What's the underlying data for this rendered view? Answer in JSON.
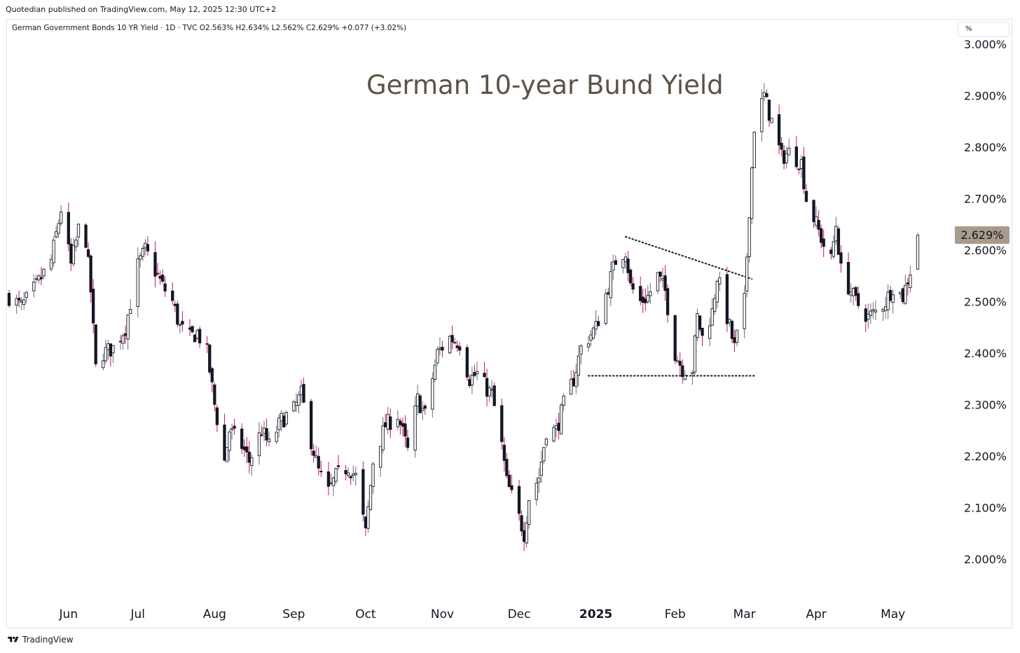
{
  "header": {
    "published_text": "Quotedian published on TradingView.com, May 12, 2025 12:30 UTC+2",
    "symbol_line": "German Government Bonds 10 YR Yield · 1D · TVC  O2.563%  H2.634%  L2.562%  C2.629%  +0.077 (+3.02%)",
    "unit_label": "%"
  },
  "footer": {
    "brand": "TradingView"
  },
  "colors": {
    "up": "#131722",
    "down": "#c2185b",
    "wick": "#6a6d78",
    "label_bg": "#a89b8c",
    "title": "#5d5247"
  },
  "chart_data": {
    "type": "candlestick",
    "title": "German 10-year Bund Yield",
    "xlabel": "",
    "ylabel": "",
    "ylim": [
      1.9,
      3.03
    ],
    "y_ticks": [
      "3.000%",
      "2.900%",
      "2.800%",
      "2.700%",
      "2.600%",
      "2.500%",
      "2.400%",
      "2.300%",
      "2.200%",
      "2.100%",
      "2.000%"
    ],
    "x_ticks": [
      {
        "label": "Jun",
        "date": "2024-06-03"
      },
      {
        "label": "Jul",
        "date": "2024-07-01"
      },
      {
        "label": "Aug",
        "date": "2024-08-01"
      },
      {
        "label": "Sep",
        "date": "2024-09-02"
      },
      {
        "label": "Oct",
        "date": "2024-10-01"
      },
      {
        "label": "Nov",
        "date": "2024-11-01"
      },
      {
        "label": "Dec",
        "date": "2024-12-02"
      },
      {
        "label": "2025",
        "date": "2025-01-02",
        "bold": true
      },
      {
        "label": "Feb",
        "date": "2025-02-03"
      },
      {
        "label": "Mar",
        "date": "2025-03-03"
      },
      {
        "label": "Apr",
        "date": "2025-04-01"
      },
      {
        "label": "May",
        "date": "2025-05-02"
      }
    ],
    "last_price_label": "2.629%",
    "last_price": 2.629,
    "ohlc_latest": {
      "open": 2.563,
      "high": 2.634,
      "low": 2.562,
      "close": 2.629,
      "change": 0.077,
      "change_pct": 3.02
    },
    "trendlines": [
      {
        "style": "dotted",
        "from": {
          "date": "2025-01-14",
          "value": 2.626
        },
        "to": {
          "date": "2025-03-06",
          "value": 2.544
        }
      },
      {
        "style": "dotted",
        "from": {
          "date": "2024-12-30",
          "value": 2.356
        },
        "to": {
          "date": "2025-03-07",
          "value": 2.356
        }
      }
    ],
    "series_path": [
      [
        "2024-05-10",
        2.51
      ],
      [
        "2024-05-15",
        2.49
      ],
      [
        "2024-05-21",
        2.53
      ],
      [
        "2024-05-27",
        2.58
      ],
      [
        "2024-05-31",
        2.68
      ],
      [
        "2024-06-04",
        2.57
      ],
      [
        "2024-06-07",
        2.64
      ],
      [
        "2024-06-10",
        2.62
      ],
      [
        "2024-06-12",
        2.52
      ],
      [
        "2024-06-14",
        2.37
      ],
      [
        "2024-06-17",
        2.4
      ],
      [
        "2024-06-21",
        2.41
      ],
      [
        "2024-06-26",
        2.45
      ],
      [
        "2024-07-01",
        2.57
      ],
      [
        "2024-07-04",
        2.6
      ],
      [
        "2024-07-08",
        2.56
      ],
      [
        "2024-07-11",
        2.53
      ],
      [
        "2024-07-15",
        2.5
      ],
      [
        "2024-07-18",
        2.45
      ],
      [
        "2024-07-22",
        2.43
      ],
      [
        "2024-07-25",
        2.44
      ],
      [
        "2024-07-29",
        2.4
      ],
      [
        "2024-08-01",
        2.3
      ],
      [
        "2024-08-05",
        2.19
      ],
      [
        "2024-08-07",
        2.25
      ],
      [
        "2024-08-12",
        2.22
      ],
      [
        "2024-08-15",
        2.19
      ],
      [
        "2024-08-20",
        2.25
      ],
      [
        "2024-08-23",
        2.22
      ],
      [
        "2024-08-28",
        2.27
      ],
      [
        "2024-09-02",
        2.29
      ],
      [
        "2024-09-05",
        2.32
      ],
      [
        "2024-09-09",
        2.23
      ],
      [
        "2024-09-12",
        2.17
      ],
      [
        "2024-09-16",
        2.13
      ],
      [
        "2024-09-19",
        2.16
      ],
      [
        "2024-09-24",
        2.18
      ],
      [
        "2024-09-27",
        2.16
      ],
      [
        "2024-10-01",
        2.05
      ],
      [
        "2024-10-04",
        2.19
      ],
      [
        "2024-10-09",
        2.26
      ],
      [
        "2024-10-14",
        2.28
      ],
      [
        "2024-10-18",
        2.21
      ],
      [
        "2024-10-22",
        2.31
      ],
      [
        "2024-10-25",
        2.28
      ],
      [
        "2024-10-30",
        2.4
      ],
      [
        "2024-11-04",
        2.43
      ],
      [
        "2024-11-08",
        2.42
      ],
      [
        "2024-11-12",
        2.35
      ],
      [
        "2024-11-15",
        2.36
      ],
      [
        "2024-11-19",
        2.33
      ],
      [
        "2024-11-21",
        2.32
      ],
      [
        "2024-11-25",
        2.22
      ],
      [
        "2024-11-27",
        2.15
      ],
      [
        "2024-12-02",
        2.08
      ],
      [
        "2024-12-04",
        2.05
      ],
      [
        "2024-12-06",
        2.12
      ],
      [
        "2024-12-10",
        2.16
      ],
      [
        "2024-12-13",
        2.25
      ],
      [
        "2024-12-17",
        2.25
      ],
      [
        "2024-12-20",
        2.3
      ],
      [
        "2024-12-24",
        2.35
      ],
      [
        "2024-12-27",
        2.41
      ],
      [
        "2025-01-02",
        2.45
      ],
      [
        "2025-01-07",
        2.53
      ],
      [
        "2025-01-10",
        2.58
      ],
      [
        "2025-01-14",
        2.6
      ],
      [
        "2025-01-16",
        2.53
      ],
      [
        "2025-01-20",
        2.5
      ],
      [
        "2025-01-23",
        2.51
      ],
      [
        "2025-01-27",
        2.55
      ],
      [
        "2025-01-30",
        2.52
      ],
      [
        "2025-02-03",
        2.4
      ],
      [
        "2025-02-06",
        2.37
      ],
      [
        "2025-02-10",
        2.37
      ],
      [
        "2025-02-12",
        2.47
      ],
      [
        "2025-02-14",
        2.43
      ],
      [
        "2025-02-18",
        2.48
      ],
      [
        "2025-02-20",
        2.55
      ],
      [
        "2025-02-24",
        2.47
      ],
      [
        "2025-02-27",
        2.41
      ],
      [
        "2025-03-03",
        2.5
      ],
      [
        "2025-03-05",
        2.68
      ],
      [
        "2025-03-07",
        2.84
      ],
      [
        "2025-03-11",
        2.9
      ],
      [
        "2025-03-14",
        2.85
      ],
      [
        "2025-03-18",
        2.78
      ],
      [
        "2025-03-21",
        2.79
      ],
      [
        "2025-03-26",
        2.77
      ],
      [
        "2025-03-28",
        2.7
      ],
      [
        "2025-04-01",
        2.65
      ],
      [
        "2025-04-04",
        2.61
      ],
      [
        "2025-04-07",
        2.58
      ],
      [
        "2025-04-09",
        2.65
      ],
      [
        "2025-04-11",
        2.56
      ],
      [
        "2025-04-15",
        2.52
      ],
      [
        "2025-04-17",
        2.5
      ],
      [
        "2025-04-22",
        2.47
      ],
      [
        "2025-04-25",
        2.48
      ],
      [
        "2025-04-29",
        2.5
      ],
      [
        "2025-05-02",
        2.53
      ],
      [
        "2025-05-06",
        2.51
      ],
      [
        "2025-05-09",
        2.56
      ],
      [
        "2025-05-12",
        2.629
      ]
    ]
  }
}
